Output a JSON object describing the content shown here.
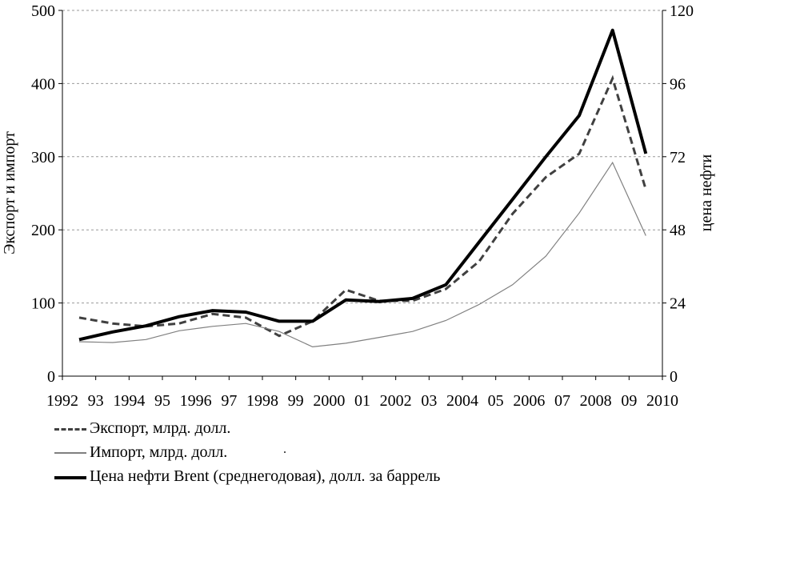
{
  "chart_data": {
    "type": "line",
    "x": [
      1992,
      1993,
      1994,
      1995,
      1996,
      1997,
      1998,
      1999,
      2000,
      2001,
      2002,
      2003,
      2004,
      2005,
      2006,
      2007,
      2008,
      2009
    ],
    "x_tick_labels": [
      "1992",
      "93",
      "1994",
      "95",
      "1996",
      "97",
      "1998",
      "99",
      "2000",
      "01",
      "2002",
      "03",
      "2004",
      "05",
      "2006",
      "07",
      "2008",
      "09",
      "2010"
    ],
    "y_left": {
      "label": "Экспорт и импорт",
      "range": [
        0,
        500
      ],
      "ticks": [
        0,
        100,
        200,
        300,
        400,
        500
      ]
    },
    "y_right": {
      "label": "цена нефти",
      "range": [
        0,
        120
      ],
      "ticks": [
        0,
        24,
        48,
        72,
        96,
        120
      ]
    },
    "grid": "horizontal dashed",
    "legend_position": "bottom-left",
    "series": [
      {
        "name": "Экспорт, млрд. долл.",
        "axis": "left",
        "style": "dashed",
        "color": "#404040",
        "values": [
          80,
          72,
          68,
          72,
          85,
          80,
          55,
          75,
          118,
          103,
          103,
          119,
          157,
          222,
          272,
          304,
          407,
          255
        ]
      },
      {
        "name": "Импорт, млрд. долл.",
        "axis": "left",
        "style": "thin",
        "color": "#808080",
        "values": [
          47,
          46,
          50,
          62,
          68,
          72,
          61,
          40,
          45,
          53,
          61,
          76,
          98,
          125,
          164,
          223,
          292,
          192
        ]
      },
      {
        "name": "Цена нефти Brent (среднегодовая), долл. за баррель",
        "axis": "right",
        "style": "thick",
        "color": "#000000",
        "values": [
          12,
          14.5,
          16.5,
          19.5,
          21.5,
          21,
          18,
          18,
          25,
          24.5,
          25.5,
          30,
          44,
          58,
          72,
          85.5,
          113.5,
          73
        ]
      }
    ]
  },
  "legend_dot": "."
}
